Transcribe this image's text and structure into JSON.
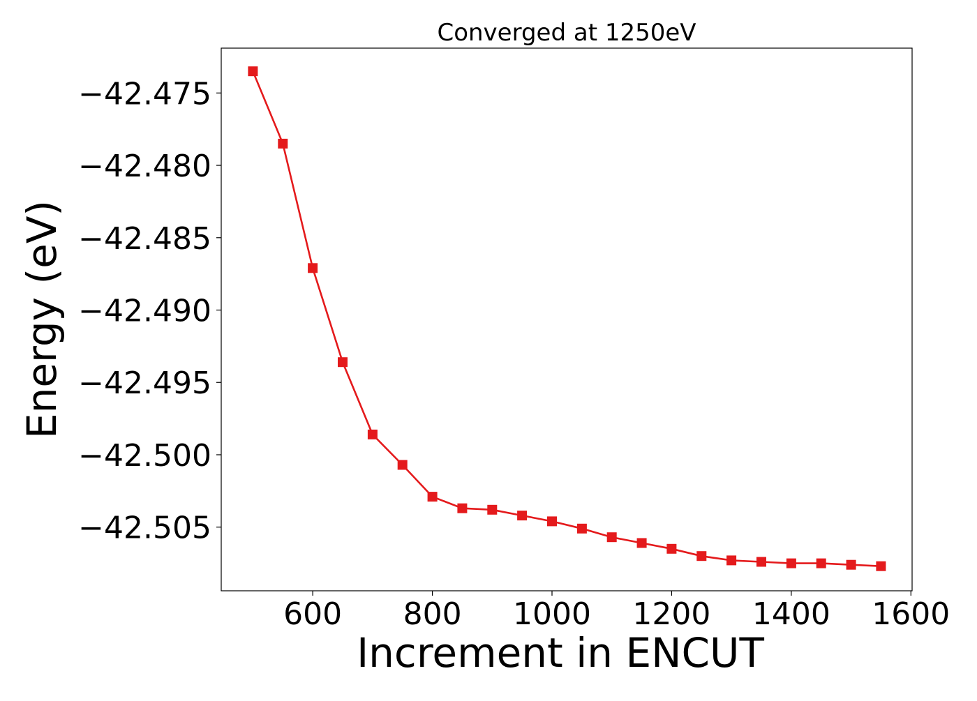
{
  "chart_data": {
    "type": "line",
    "title": "Converged at 1250eV",
    "xlabel": "Increment in ENCUT",
    "ylabel": "Energy (eV)",
    "xlim": [
      447,
      1602
    ],
    "ylim": [
      -42.5094,
      -42.4719
    ],
    "x_ticks": [
      600,
      800,
      1000,
      1200,
      1400,
      1600
    ],
    "x_tick_labels": [
      "600",
      "800",
      "1000",
      "1200",
      "1400",
      "1600"
    ],
    "y_ticks": [
      -42.475,
      -42.48,
      -42.485,
      -42.49,
      -42.495,
      -42.5,
      -42.505
    ],
    "y_tick_labels": [
      "−42.475",
      "−42.480",
      "−42.485",
      "−42.490",
      "−42.495",
      "−42.500",
      "−42.505"
    ],
    "grid": false,
    "legend": "none",
    "series": [
      {
        "color": "#e41a1c",
        "marker": "square",
        "x": [
          500,
          550,
          600,
          650,
          700,
          750,
          800,
          850,
          900,
          950,
          1000,
          1050,
          1100,
          1150,
          1200,
          1250,
          1300,
          1350,
          1400,
          1450,
          1500,
          1550
        ],
        "y": [
          -42.4735,
          -42.4785,
          -42.4871,
          -42.4936,
          -42.4986,
          -42.5007,
          -42.5029,
          -42.5037,
          -42.5038,
          -42.5042,
          -42.5046,
          -42.5051,
          -42.5057,
          -42.5061,
          -42.5065,
          -42.507,
          -42.5073,
          -42.5074,
          -42.5075,
          -42.5075,
          -42.5076,
          -42.5077
        ]
      }
    ]
  }
}
